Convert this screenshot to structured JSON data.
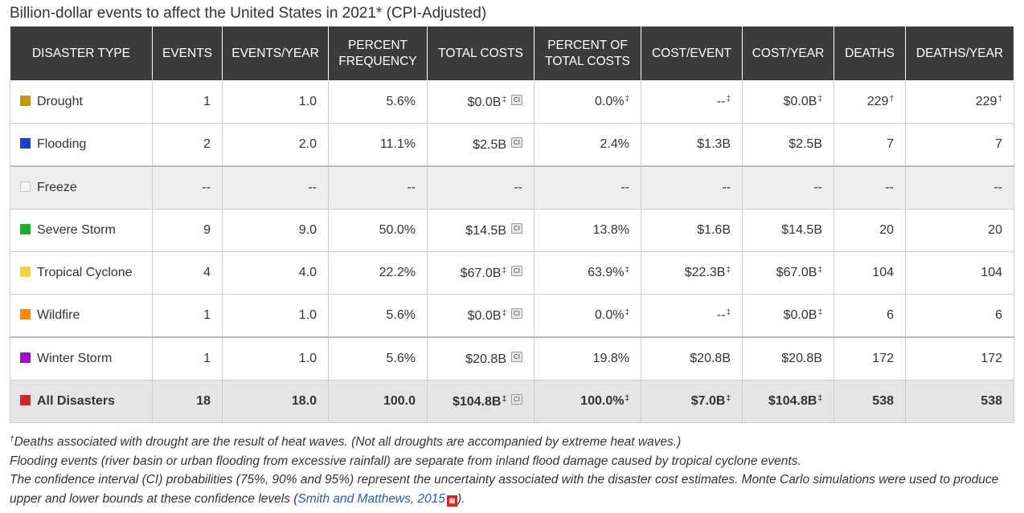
{
  "title": "Billion-dollar events to affect the United States in 2021* (CPI-Adjusted)",
  "headers": {
    "type": "DISASTER TYPE",
    "events": "EVENTS",
    "events_year": "EVENTS/YEAR",
    "pct_freq": "PERCENT FREQUENCY",
    "total_costs": "TOTAL COSTS",
    "pct_total": "PERCENT OF TOTAL COSTS",
    "cost_event": "COST/EVENT",
    "cost_year": "COST/YEAR",
    "deaths": "DEATHS",
    "deaths_year": "DEATHS/YEAR"
  },
  "ci_label": "CI",
  "rows": [
    {
      "type": "Drought",
      "color": "#c8960c",
      "events": "1",
      "events_year": "1.0",
      "pct_freq": "5.6%",
      "total": "$0.0B",
      "total_sup": "‡",
      "pct_total": "0.0%",
      "pct_total_sup": "‡",
      "cost_event": "--",
      "cost_event_sup": "‡",
      "cost_year": "$0.0B",
      "cost_year_sup": "‡",
      "deaths": "229",
      "deaths_sup": "†",
      "deaths_year": "229",
      "deaths_year_sup": "†"
    },
    {
      "type": "Flooding",
      "color": "#1a3fc8",
      "events": "2",
      "events_year": "2.0",
      "pct_freq": "11.1%",
      "total": "$2.5B",
      "total_sup": "",
      "pct_total": "2.4%",
      "pct_total_sup": "",
      "cost_event": "$1.3B",
      "cost_event_sup": "",
      "cost_year": "$2.5B",
      "cost_year_sup": "",
      "deaths": "7",
      "deaths_sup": "",
      "deaths_year": "7",
      "deaths_year_sup": ""
    },
    {
      "type": "Freeze",
      "color": "#f4f4f4",
      "events": "--",
      "events_year": "--",
      "pct_freq": "--",
      "total": "--",
      "total_sup": "",
      "pct_total": "--",
      "pct_total_sup": "",
      "cost_event": "--",
      "cost_event_sup": "",
      "cost_year": "--",
      "cost_year_sup": "",
      "deaths": "--",
      "deaths_sup": "",
      "deaths_year": "--",
      "deaths_year_sup": ""
    },
    {
      "type": "Severe Storm",
      "color": "#19b024",
      "events": "9",
      "events_year": "9.0",
      "pct_freq": "50.0%",
      "total": "$14.5B",
      "total_sup": "",
      "pct_total": "13.8%",
      "pct_total_sup": "",
      "cost_event": "$1.6B",
      "cost_event_sup": "",
      "cost_year": "$14.5B",
      "cost_year_sup": "",
      "deaths": "20",
      "deaths_sup": "",
      "deaths_year": "20",
      "deaths_year_sup": ""
    },
    {
      "type": "Tropical Cyclone",
      "color": "#f7d04a",
      "events": "4",
      "events_year": "4.0",
      "pct_freq": "22.2%",
      "total": "$67.0B",
      "total_sup": "‡",
      "pct_total": "63.9%",
      "pct_total_sup": "‡",
      "cost_event": "$22.3B",
      "cost_event_sup": "‡",
      "cost_year": "$67.0B",
      "cost_year_sup": "‡",
      "deaths": "104",
      "deaths_sup": "",
      "deaths_year": "104",
      "deaths_year_sup": ""
    },
    {
      "type": "Wildfire",
      "color": "#f88a14",
      "events": "1",
      "events_year": "1.0",
      "pct_freq": "5.6%",
      "total": "$0.0B",
      "total_sup": "‡",
      "pct_total": "0.0%",
      "pct_total_sup": "‡",
      "cost_event": "--",
      "cost_event_sup": "‡",
      "cost_year": "$0.0B",
      "cost_year_sup": "‡",
      "deaths": "6",
      "deaths_sup": "",
      "deaths_year": "6",
      "deaths_year_sup": ""
    },
    {
      "type": "Winter Storm",
      "color": "#9a10c8",
      "events": "1",
      "events_year": "1.0",
      "pct_freq": "5.6%",
      "total": "$20.8B",
      "total_sup": "",
      "pct_total": "19.8%",
      "pct_total_sup": "",
      "cost_event": "$20.8B",
      "cost_event_sup": "",
      "cost_year": "$20.8B",
      "cost_year_sup": "",
      "deaths": "172",
      "deaths_sup": "",
      "deaths_year": "172",
      "deaths_year_sup": ""
    }
  ],
  "total": {
    "type": "All Disasters",
    "color": "#c8282e",
    "events": "18",
    "events_year": "18.0",
    "pct_freq": "100.0",
    "total": "$104.8B",
    "total_sup": "‡",
    "pct_total": "100.0%",
    "pct_total_sup": "‡",
    "cost_event": "$7.0B",
    "cost_event_sup": "‡",
    "cost_year": "$104.8B",
    "cost_year_sup": "‡",
    "deaths": "538",
    "deaths_year": "538"
  },
  "notes": {
    "line1_sup": "†",
    "line1": "Deaths associated with drought are the result of heat waves. (Not all droughts are accompanied by extreme heat waves.)",
    "line2": "Flooding events (river basin or urban flooding from excessive rainfall) are separate from inland flood damage caused by tropical cyclone events.",
    "line3": "The confidence interval (CI) probabilities (75%, 90% and 95%) represent the uncertainty associated with the disaster cost estimates. Monte Carlo simulations were used to produce upper and lower bounds at these confidence levels (",
    "link": "Smith and Matthews, 2015",
    "pdf_icon": "pdf-icon",
    "line3_end": ")."
  }
}
